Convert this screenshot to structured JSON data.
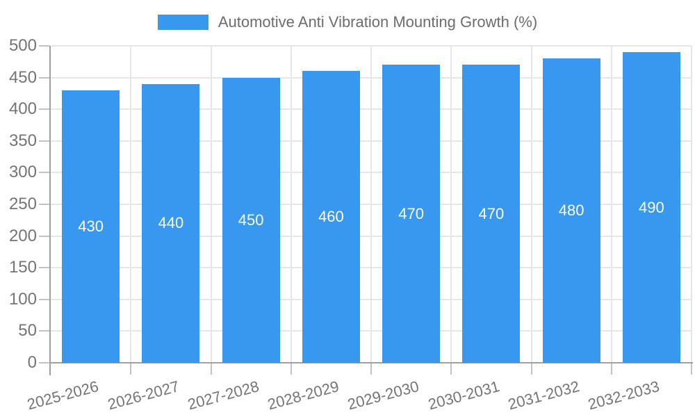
{
  "legend": {
    "series_label": "Automotive Anti Vibration Mounting Growth (%)",
    "swatch_color": "#3897ee"
  },
  "chart_data": {
    "type": "bar",
    "title": "Automotive Anti Vibration Mounting Growth (%)",
    "categories": [
      "2025-2026",
      "2026-2027",
      "2027-2028",
      "2028-2029",
      "2029-2030",
      "2030-2031",
      "2031-2032",
      "2032-2033"
    ],
    "values": [
      430,
      440,
      450,
      460,
      470,
      470,
      480,
      490
    ],
    "xlabel": "",
    "ylabel": "",
    "ylim": [
      0,
      500
    ],
    "ytick_step": 50,
    "y_ticks": [
      0,
      50,
      100,
      150,
      200,
      250,
      300,
      350,
      400,
      450,
      500
    ],
    "grid": true,
    "legend_position": "top",
    "x_tick_rotation_deg": -15,
    "colors": {
      "bar": "#3897ee",
      "axis": "#a0a0a0",
      "grid": "#e6e6e6",
      "tick": "#c2c2c2",
      "tick_label": "#757575",
      "title": "#6d6d6d",
      "value_label": "#ffffff"
    }
  }
}
